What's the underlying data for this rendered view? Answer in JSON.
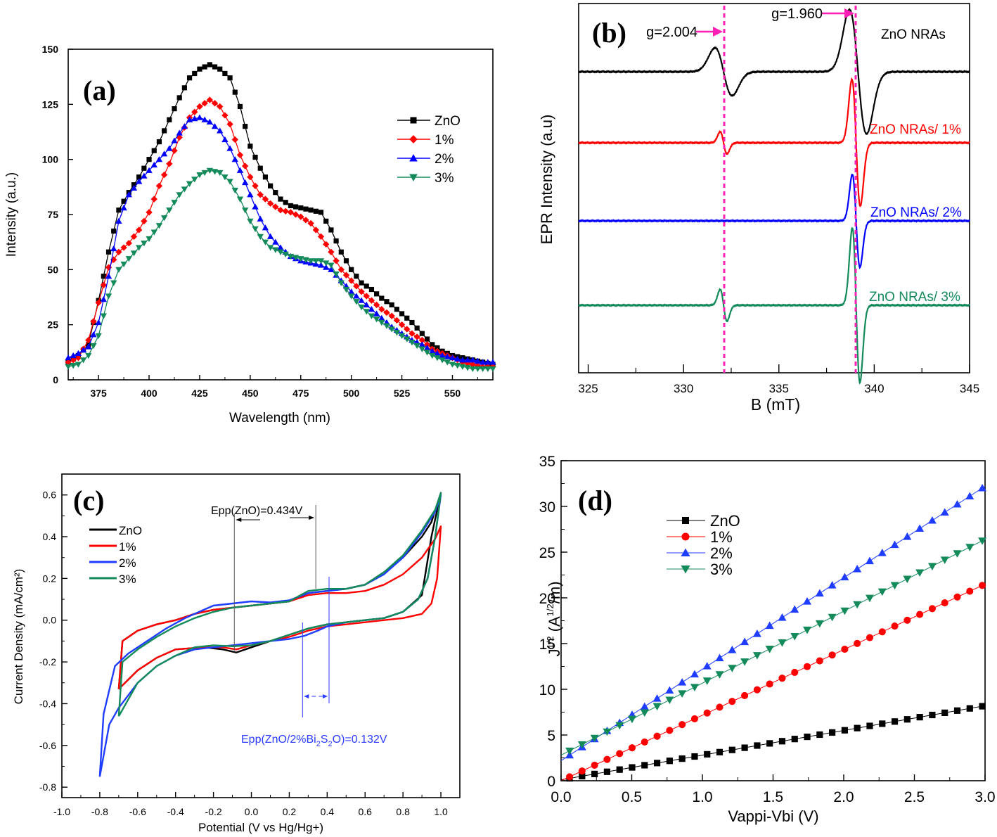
{
  "chart_data": [
    {
      "id": "a",
      "type": "line",
      "panel_label": "(a)",
      "title": "",
      "xlabel": "Wavelength (nm)",
      "ylabel": "Intensity (a.u.)",
      "xlim": [
        360,
        570
      ],
      "ylim": [
        0,
        150
      ],
      "xticks": [
        375,
        400,
        425,
        450,
        475,
        500,
        525,
        550
      ],
      "yticks": [
        0,
        25,
        50,
        75,
        100,
        125,
        150
      ],
      "grid": false,
      "legend_position": "upper-right",
      "series": [
        {
          "name": "ZnO",
          "color": "#000000",
          "marker": "square",
          "x": [
            360,
            365,
            370,
            375,
            380,
            385,
            390,
            395,
            400,
            405,
            410,
            415,
            420,
            425,
            430,
            435,
            440,
            445,
            450,
            455,
            460,
            465,
            470,
            475,
            480,
            485,
            490,
            495,
            500,
            505,
            510,
            515,
            520,
            525,
            530,
            535,
            540,
            545,
            550,
            555,
            560,
            565,
            570
          ],
          "y": [
            8,
            11,
            16,
            36,
            58,
            77,
            85,
            92,
            100,
            108,
            118,
            128,
            137,
            141,
            143,
            141,
            137,
            124,
            106,
            96,
            88,
            82,
            79,
            78,
            77,
            76,
            68,
            58,
            50,
            44,
            41,
            37,
            34,
            30,
            26,
            21,
            16,
            13,
            11,
            10,
            9,
            8,
            7
          ]
        },
        {
          "name": "1%",
          "color": "#ff0000",
          "marker": "diamond",
          "x": [
            360,
            365,
            370,
            375,
            380,
            385,
            390,
            395,
            400,
            405,
            410,
            415,
            420,
            425,
            430,
            435,
            440,
            445,
            450,
            455,
            460,
            465,
            470,
            475,
            480,
            485,
            490,
            495,
            500,
            505,
            510,
            515,
            520,
            525,
            530,
            535,
            540,
            545,
            550,
            555,
            560,
            565,
            570
          ],
          "y": [
            8,
            10,
            18,
            35,
            51,
            58,
            62,
            68,
            76,
            88,
            98,
            110,
            119,
            124,
            127,
            124,
            116,
            102,
            92,
            84,
            80,
            77,
            76,
            74,
            71,
            65,
            58,
            50,
            45,
            40,
            36,
            32,
            29,
            25,
            21,
            18,
            14,
            12,
            10,
            8,
            7,
            6,
            6
          ]
        },
        {
          "name": "2%",
          "color": "#0000ff",
          "marker": "triangle-up",
          "x": [
            360,
            365,
            370,
            375,
            380,
            385,
            390,
            395,
            400,
            405,
            410,
            415,
            420,
            425,
            430,
            435,
            440,
            445,
            450,
            455,
            460,
            465,
            470,
            475,
            480,
            485,
            490,
            495,
            500,
            505,
            510,
            515,
            520,
            525,
            530,
            535,
            540,
            545,
            550,
            555,
            560,
            565,
            570
          ],
          "y": [
            10,
            12,
            15,
            26,
            47,
            72,
            84,
            90,
            95,
            100,
            105,
            112,
            118,
            119,
            117,
            113,
            105,
            95,
            84,
            73,
            65,
            60,
            56,
            54,
            53,
            52,
            50,
            45,
            40,
            36,
            32,
            28,
            24,
            21,
            18,
            16,
            13,
            11,
            10,
            9,
            9,
            8,
            8
          ]
        },
        {
          "name": "3%",
          "color": "#138a5a",
          "marker": "triangle-down",
          "x": [
            360,
            365,
            370,
            375,
            380,
            385,
            390,
            395,
            400,
            405,
            410,
            415,
            420,
            425,
            430,
            435,
            440,
            445,
            450,
            455,
            460,
            465,
            470,
            475,
            480,
            485,
            490,
            495,
            500,
            505,
            510,
            515,
            520,
            525,
            530,
            535,
            540,
            545,
            550,
            555,
            560,
            565,
            570
          ],
          "y": [
            6,
            7,
            11,
            20,
            38,
            50,
            55,
            60,
            64,
            70,
            77,
            84,
            89,
            93,
            95,
            94,
            90,
            82,
            72,
            65,
            60,
            58,
            56,
            55,
            54,
            54,
            52,
            44,
            38,
            33,
            29,
            26,
            23,
            20,
            17,
            14,
            11,
            9,
            7,
            6,
            5,
            5,
            5
          ]
        }
      ]
    },
    {
      "id": "b",
      "type": "line",
      "panel_label": "(b)",
      "title": "",
      "xlabel": "B (mT)",
      "ylabel": "EPR Intensity (a.u)",
      "xlim": [
        324.5,
        345
      ],
      "xticks": [
        325,
        330,
        335,
        340,
        345
      ],
      "yticks": [],
      "grid": false,
      "annotations": [
        {
          "text": "g=2.004",
          "field_mT": 332.2,
          "color": "#ff1fb4"
        },
        {
          "text": "g=1.960",
          "field_mT": 339.0,
          "color": "#ff1fb4"
        }
      ],
      "series": [
        {
          "name": "ZnO NRAs",
          "color": "#000000",
          "peaks": [
            {
              "center": 332.1,
              "amplitude": 1.0,
              "width": 0.45
            },
            {
              "center": 339.15,
              "amplitude": 2.6,
              "width": 0.45
            }
          ]
        },
        {
          "name": "ZnO NRAs/ 1%",
          "color": "#ff0000",
          "peaks": [
            {
              "center": 332.1,
              "amplitude": 0.35,
              "width": 0.18
            },
            {
              "center": 339.05,
              "amplitude": 2.0,
              "width": 0.22
            }
          ]
        },
        {
          "name": "ZnO NRAs/ 2%",
          "color": "#0000ff",
          "peaks": [
            {
              "center": 339.05,
              "amplitude": 1.5,
              "width": 0.2
            }
          ]
        },
        {
          "name": "ZnO NRAs/ 3%",
          "color": "#138a5a",
          "peaks": [
            {
              "center": 332.1,
              "amplitude": 0.45,
              "width": 0.18
            },
            {
              "center": 339.05,
              "amplitude": 2.2,
              "width": 0.2
            }
          ]
        }
      ]
    },
    {
      "id": "c",
      "type": "line",
      "panel_label": "(c)",
      "title": "",
      "xlabel": "Potential (V vs Hg/Hg+)",
      "ylabel": "Current Density (mA/cm²)",
      "xlim": [
        -1.0,
        1.1
      ],
      "ylim": [
        -0.85,
        0.7
      ],
      "xticks": [
        -1.0,
        -0.8,
        -0.6,
        -0.4,
        -0.2,
        0.0,
        0.2,
        0.4,
        0.6,
        0.8,
        1.0
      ],
      "yticks": [
        -0.8,
        -0.6,
        -0.4,
        -0.2,
        0.0,
        0.2,
        0.4,
        0.6
      ],
      "grid": false,
      "legend_position": "upper-left",
      "annotations": [
        {
          "text": "Epp(ZnO)=0.434V",
          "color": "#000000",
          "x_range": [
            -0.09,
            0.34
          ]
        },
        {
          "text_prefix": "Epp(ZnO/2%Bi",
          "sub1": "2",
          "mid": "S",
          "sub2": "2",
          "text_suffix": "O)=0.132V",
          "color": "#2b3bff",
          "x_range": [
            0.27,
            0.41
          ]
        }
      ],
      "series": [
        {
          "name": "ZnO",
          "color": "#000000",
          "x": [
            -0.7,
            -0.68,
            -0.6,
            -0.5,
            -0.4,
            -0.3,
            -0.2,
            -0.1,
            0.0,
            0.1,
            0.2,
            0.3,
            0.4,
            0.5,
            0.6,
            0.7,
            0.8,
            0.9,
            0.95,
            1.0,
            0.95,
            0.9,
            0.8,
            0.7,
            0.6,
            0.5,
            0.4,
            0.3,
            0.2,
            0.1,
            0.0,
            -0.08,
            -0.15,
            -0.25,
            -0.4,
            -0.5,
            -0.6,
            -0.7
          ],
          "y": [
            -0.33,
            -0.1,
            -0.05,
            -0.02,
            0.0,
            0.03,
            0.05,
            0.06,
            0.07,
            0.08,
            0.09,
            0.13,
            0.14,
            0.15,
            0.17,
            0.23,
            0.3,
            0.4,
            0.47,
            0.61,
            0.4,
            0.12,
            0.04,
            0.01,
            0.0,
            -0.01,
            -0.02,
            -0.04,
            -0.07,
            -0.1,
            -0.13,
            -0.155,
            -0.14,
            -0.13,
            -0.14,
            -0.18,
            -0.24,
            -0.33
          ]
        },
        {
          "name": "1%",
          "color": "#ff0000",
          "x": [
            -0.7,
            -0.68,
            -0.6,
            -0.5,
            -0.4,
            -0.3,
            -0.2,
            -0.1,
            0.0,
            0.1,
            0.2,
            0.3,
            0.4,
            0.5,
            0.6,
            0.7,
            0.8,
            0.9,
            0.97,
            1.0,
            0.98,
            0.95,
            0.9,
            0.85,
            0.8,
            0.7,
            0.6,
            0.5,
            0.4,
            0.3,
            0.2,
            0.1,
            0.0,
            -0.08,
            -0.15,
            -0.25,
            -0.4,
            -0.5,
            -0.6,
            -0.7
          ],
          "y": [
            -0.33,
            -0.1,
            -0.05,
            -0.02,
            0.0,
            0.03,
            0.05,
            0.06,
            0.07,
            0.08,
            0.09,
            0.12,
            0.13,
            0.13,
            0.14,
            0.17,
            0.22,
            0.3,
            0.39,
            0.45,
            0.2,
            0.08,
            0.03,
            0.02,
            0.01,
            0.0,
            -0.01,
            -0.02,
            -0.03,
            -0.05,
            -0.08,
            -0.1,
            -0.12,
            -0.14,
            -0.13,
            -0.13,
            -0.14,
            -0.18,
            -0.24,
            -0.33
          ]
        },
        {
          "name": "2%",
          "color": "#1f3dff",
          "x": [
            -0.8,
            -0.78,
            -0.72,
            -0.65,
            -0.55,
            -0.45,
            -0.35,
            -0.25,
            -0.2,
            -0.1,
            0.0,
            0.1,
            0.2,
            0.3,
            0.4,
            0.5,
            0.6,
            0.7,
            0.8,
            0.9,
            0.97,
            1.0,
            0.97,
            0.93,
            0.88,
            0.8,
            0.7,
            0.6,
            0.5,
            0.4,
            0.35,
            0.28,
            0.2,
            0.1,
            0.0,
            -0.1,
            -0.2,
            -0.3,
            -0.4,
            -0.5,
            -0.6,
            -0.7,
            -0.75,
            -0.8
          ],
          "y": [
            -0.75,
            -0.45,
            -0.22,
            -0.16,
            -0.1,
            -0.04,
            0.01,
            0.05,
            0.07,
            0.08,
            0.09,
            0.085,
            0.095,
            0.13,
            0.14,
            0.15,
            0.17,
            0.22,
            0.3,
            0.42,
            0.52,
            0.6,
            0.4,
            0.2,
            0.1,
            0.04,
            0.01,
            0.0,
            -0.01,
            -0.03,
            -0.05,
            -0.075,
            -0.09,
            -0.1,
            -0.11,
            -0.12,
            -0.13,
            -0.14,
            -0.17,
            -0.22,
            -0.3,
            -0.42,
            -0.5,
            -0.75
          ]
        },
        {
          "name": "3%",
          "color": "#138a5a",
          "x": [
            -0.7,
            -0.68,
            -0.6,
            -0.5,
            -0.4,
            -0.3,
            -0.2,
            -0.1,
            0.0,
            0.1,
            0.2,
            0.3,
            0.4,
            0.5,
            0.6,
            0.7,
            0.8,
            0.9,
            0.97,
            1.0,
            0.97,
            0.93,
            0.88,
            0.8,
            0.7,
            0.6,
            0.5,
            0.4,
            0.3,
            0.2,
            0.1,
            0.0,
            -0.1,
            -0.2,
            -0.3,
            -0.4,
            -0.5,
            -0.6,
            -0.7
          ],
          "y": [
            -0.46,
            -0.2,
            -0.14,
            -0.08,
            -0.03,
            0.01,
            0.04,
            0.06,
            0.07,
            0.08,
            0.09,
            0.14,
            0.15,
            0.15,
            0.17,
            0.23,
            0.31,
            0.43,
            0.53,
            0.61,
            0.4,
            0.2,
            0.1,
            0.04,
            0.01,
            0.0,
            -0.01,
            -0.02,
            -0.04,
            -0.07,
            -0.1,
            -0.12,
            -0.125,
            -0.12,
            -0.13,
            -0.17,
            -0.22,
            -0.3,
            -0.46
          ]
        }
      ]
    },
    {
      "id": "d",
      "type": "line",
      "panel_label": "(d)",
      "title": "",
      "xlabel": "Vappi-Vbi (V)",
      "ylabel_main": "J",
      "ylabel_sup": "1/2",
      "ylabel_unit_open": " (A",
      "ylabel_unit_sup": "1/2",
      "ylabel_unit_close": "/m)",
      "xlim": [
        0.0,
        3.0
      ],
      "ylim": [
        0,
        35
      ],
      "xticks": [
        0.0,
        0.5,
        1.0,
        1.5,
        2.0,
        2.5,
        3.0
      ],
      "yticks": [
        0,
        5,
        10,
        15,
        20,
        25,
        30,
        35
      ],
      "grid": false,
      "legend_position": "upper-left",
      "series": [
        {
          "name": "ZnO",
          "color": "#000000",
          "marker": "square",
          "intercept": 0.1,
          "x_end": 3.0,
          "y_end": 8.2
        },
        {
          "name": "1%",
          "color": "#ff0000",
          "marker": "circle",
          "intercept": 0.0,
          "x_end": 3.0,
          "y_end": 21.5
        },
        {
          "name": "2%",
          "color": "#1f3dff",
          "marker": "triangle-up",
          "intercept": 2.2,
          "x_end": 3.0,
          "y_end": 32.2
        },
        {
          "name": "3%",
          "color": "#138a5a",
          "marker": "triangle-down",
          "intercept": 2.8,
          "x_end": 3.0,
          "y_end": 26.4
        }
      ]
    }
  ]
}
